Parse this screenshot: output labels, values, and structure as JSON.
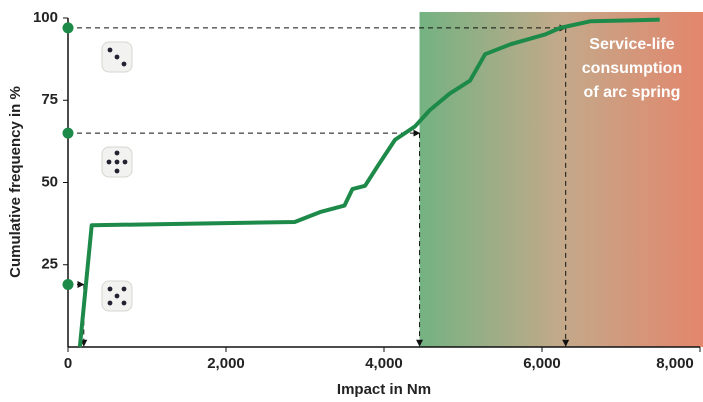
{
  "chart_data": {
    "type": "line",
    "x_label": "Impact in Nm",
    "y_label": "Cumulative frequency in %",
    "x": [
      150,
      300,
      2870,
      3190,
      3500,
      3600,
      3760,
      3920,
      4140,
      4390,
      4580,
      4830,
      5090,
      5280,
      5600,
      6040,
      6230,
      6610,
      7490
    ],
    "values": [
      0,
      37,
      38,
      41,
      43,
      48,
      49,
      55,
      63,
      67,
      72,
      77,
      81,
      89,
      92,
      95,
      97,
      99,
      99.5
    ],
    "color": "#1e8a4a",
    "xlim": [
      0,
      8000
    ],
    "xticks": [
      0,
      {
        "value": 2000,
        "label": "2,000"
      },
      {
        "value": 4000,
        "label": "4,000"
      },
      {
        "value": 6000,
        "label": "6,000"
      },
      {
        "value": 8000,
        "label": "8,000"
      }
    ],
    "ylim": [
      0,
      100
    ],
    "yticks": [
      25,
      50,
      75,
      100
    ],
    "lookups": [
      {
        "x": 200,
        "y": 19
      },
      {
        "x": 4450,
        "y": 65
      },
      {
        "x": 6300,
        "y": 97
      }
    ],
    "shaded_from": 4450,
    "shade_colors": [
      "#74b282",
      "#c3a98a",
      "#e3866c"
    ],
    "annotation": [
      "Service-life",
      "consumption",
      "of arc spring"
    ]
  }
}
